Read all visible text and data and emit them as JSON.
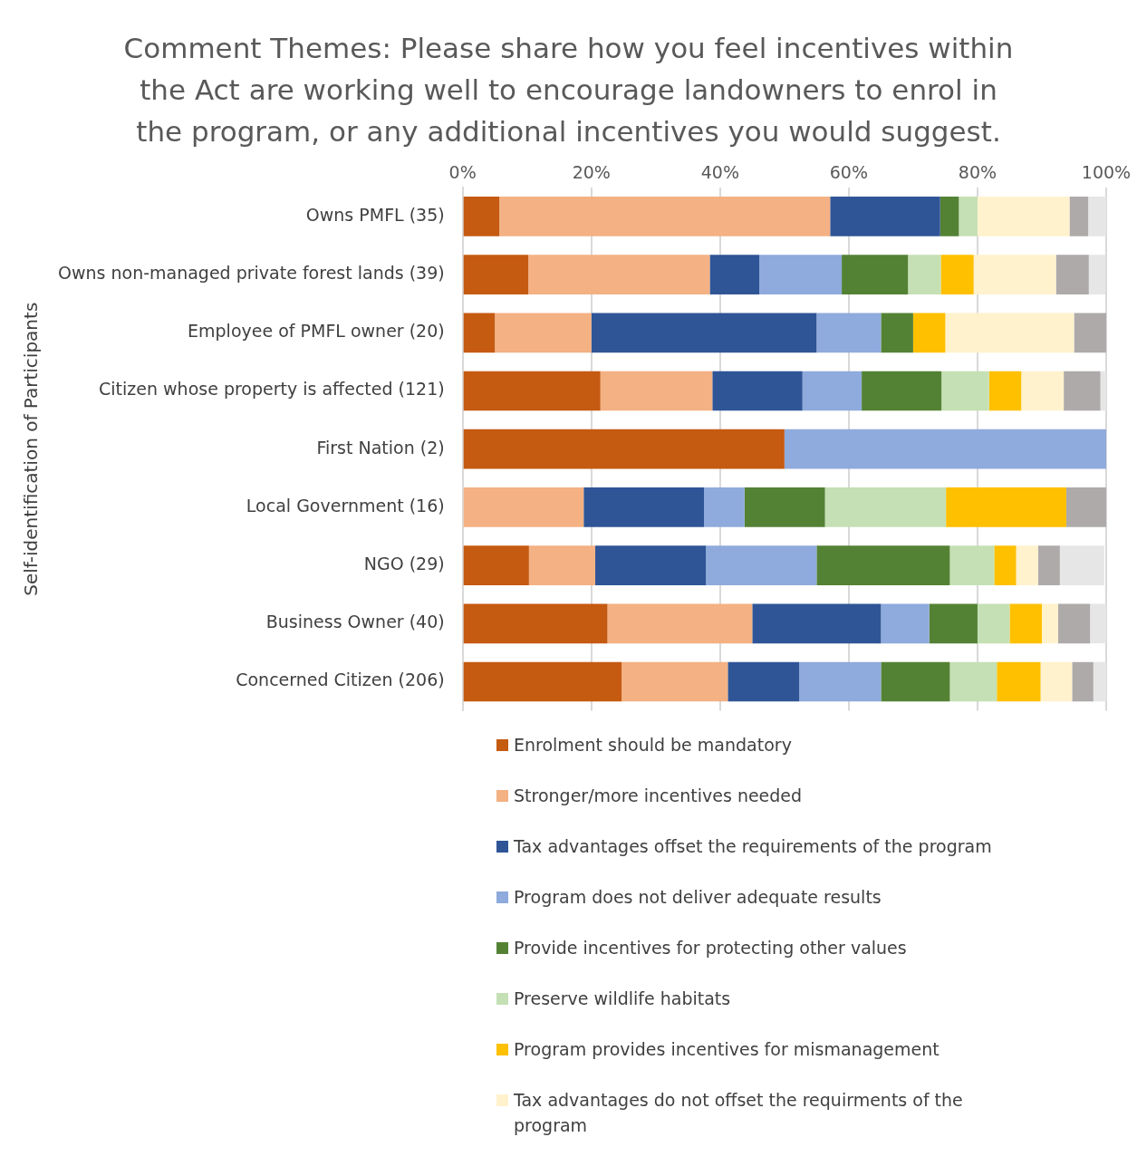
{
  "chart_data": {
    "type": "bar",
    "orientation": "horizontal",
    "stacked": true,
    "title": "Comment Themes: Please share how you feel incentives within the Act are working well to encourage landowners to enrol in the program, or any additional incentives you would suggest.",
    "ylabel": "Self-identification of Participants",
    "categories": [
      "Owns PMFL (35)",
      "Owns non-managed private forest lands (39)",
      "Employee of PMFL owner (20)",
      "Citizen whose property is affected (121)",
      "First Nation (2)",
      "Local Government (16)",
      "NGO (29)",
      "Business Owner (40)",
      "Concerned Citizen (206)"
    ],
    "xlim": [
      0,
      100
    ],
    "xticks": [
      {
        "value": 0,
        "label": "0%"
      },
      {
        "value": 20,
        "label": "20%"
      },
      {
        "value": 40,
        "label": "40%"
      },
      {
        "value": 60,
        "label": "60%"
      },
      {
        "value": 80,
        "label": "80%"
      },
      {
        "value": 100,
        "label": "100%"
      }
    ],
    "grid": "x",
    "legend": "bottom",
    "series": [
      {
        "name": "Enrolment should be mandatory",
        "color": "#c55a11",
        "values": [
          5.7,
          10.2,
          5,
          21.4,
          50,
          0,
          10.3,
          22.5,
          24.7
        ]
      },
      {
        "name": "Stronger/more incentives needed",
        "color": "#f4b183",
        "values": [
          51.4,
          28.2,
          15,
          17.4,
          0,
          18.8,
          10.3,
          22.5,
          16.5
        ]
      },
      {
        "name": "Tax advantages offset the requirements of the program",
        "color": "#2f5597",
        "values": [
          17.1,
          7.7,
          35,
          14,
          0,
          18.7,
          17.2,
          20,
          11.1
        ]
      },
      {
        "name": "Program does not deliver adequate results",
        "color": "#8faadc",
        "values": [
          0,
          12.8,
          10,
          9.2,
          50,
          6.3,
          17.2,
          7.5,
          12.7
        ]
      },
      {
        "name": "Provide incentives for protecting other values",
        "color": "#548235",
        "values": [
          2.9,
          10.3,
          5,
          12.4,
          0,
          12.5,
          20.7,
          7.5,
          10.7
        ]
      },
      {
        "name": "Preserve wildlife habitats",
        "color": "#c5e0b4",
        "values": [
          2.9,
          5.1,
          0,
          7.4,
          0,
          18.8,
          6.9,
          5,
          7.3
        ]
      },
      {
        "name": "Program provides incentives for mismanagement",
        "color": "#ffc000",
        "values": [
          0,
          5.1,
          5,
          5,
          0,
          18.7,
          3.4,
          5,
          6.8
        ]
      },
      {
        "name": "Tax advantages do not offset the requirments of the program",
        "color": "#fff2cc",
        "values": [
          14.3,
          12.8,
          20,
          6.6,
          0,
          0,
          3.4,
          2.5,
          4.9
        ]
      },
      {
        "color": "#aeaaaa",
        "values": [
          2.9,
          5.1,
          5,
          5.7,
          0,
          6.2,
          3.4,
          5,
          3.3
        ]
      },
      {
        "color": "#e7e6e6",
        "values": [
          2.9,
          2.6,
          0,
          0.9,
          0,
          0,
          6.9,
          2.5,
          2
        ]
      }
    ]
  }
}
